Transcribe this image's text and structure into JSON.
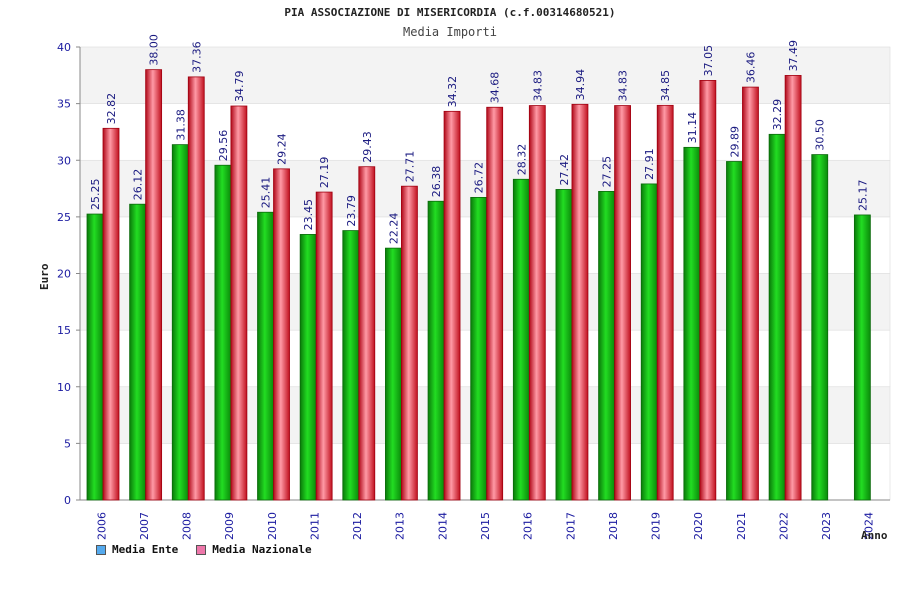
{
  "header": {
    "title": "PIA ASSOCIAZIONE DI MISERICORDIA (c.f.00314680521)",
    "subtitle": "Media Importi"
  },
  "chart_data": {
    "type": "bar",
    "title": "PIA ASSOCIAZIONE DI MISERICORDIA (c.f.00314680521)",
    "subtitle": "Media Importi",
    "xlabel": "Anno",
    "ylabel": "Euro",
    "ylim": [
      0,
      40
    ],
    "yticks": [
      "0",
      "5",
      "10",
      "15",
      "20",
      "25",
      "30",
      "35",
      "40"
    ],
    "categories": [
      "2006",
      "2007",
      "2008",
      "2009",
      "2010",
      "2011",
      "2012",
      "2013",
      "2014",
      "2015",
      "2016",
      "2017",
      "2018",
      "2019",
      "2020",
      "2021",
      "2022",
      "2023",
      "2024"
    ],
    "series": [
      {
        "name": "Media Ente",
        "color": "#11bb11",
        "values": [
          25.25,
          26.12,
          31.38,
          29.56,
          25.41,
          23.45,
          23.79,
          22.24,
          26.38,
          26.72,
          28.32,
          27.42,
          27.25,
          27.91,
          31.14,
          29.89,
          32.29,
          30.5,
          25.17
        ],
        "labels": [
          "25.25",
          "26.12",
          "31.38",
          "29.56",
          "25.41",
          "23.45",
          "23.79",
          "22.24",
          "26.38",
          "26.72",
          "28.32",
          "27.42",
          "27.25",
          "27.91",
          "31.14",
          "29.89",
          "32.29",
          "30.50",
          "25.17"
        ]
      },
      {
        "name": "Media Nazionale",
        "color": "#e02030",
        "values": [
          32.82,
          38.0,
          37.36,
          34.79,
          29.24,
          27.19,
          29.43,
          27.71,
          34.32,
          34.68,
          34.83,
          34.94,
          34.83,
          34.85,
          37.05,
          36.46,
          37.49,
          null,
          null
        ],
        "labels": [
          "32.82",
          "38.00",
          "37.36",
          "34.79",
          "29.24",
          "27.19",
          "29.43",
          "27.71",
          "34.32",
          "34.68",
          "34.83",
          "34.94",
          "34.83",
          "34.85",
          "37.05",
          "36.46",
          "37.49",
          null,
          null
        ]
      }
    ],
    "legend_labels": [
      "Media Ente",
      "Media Nazionale"
    ],
    "legend_colors": [
      "#55aaee",
      "#ee77aa"
    ],
    "legend_position": "bottom-left",
    "grid": "alternating horizontal bands"
  }
}
